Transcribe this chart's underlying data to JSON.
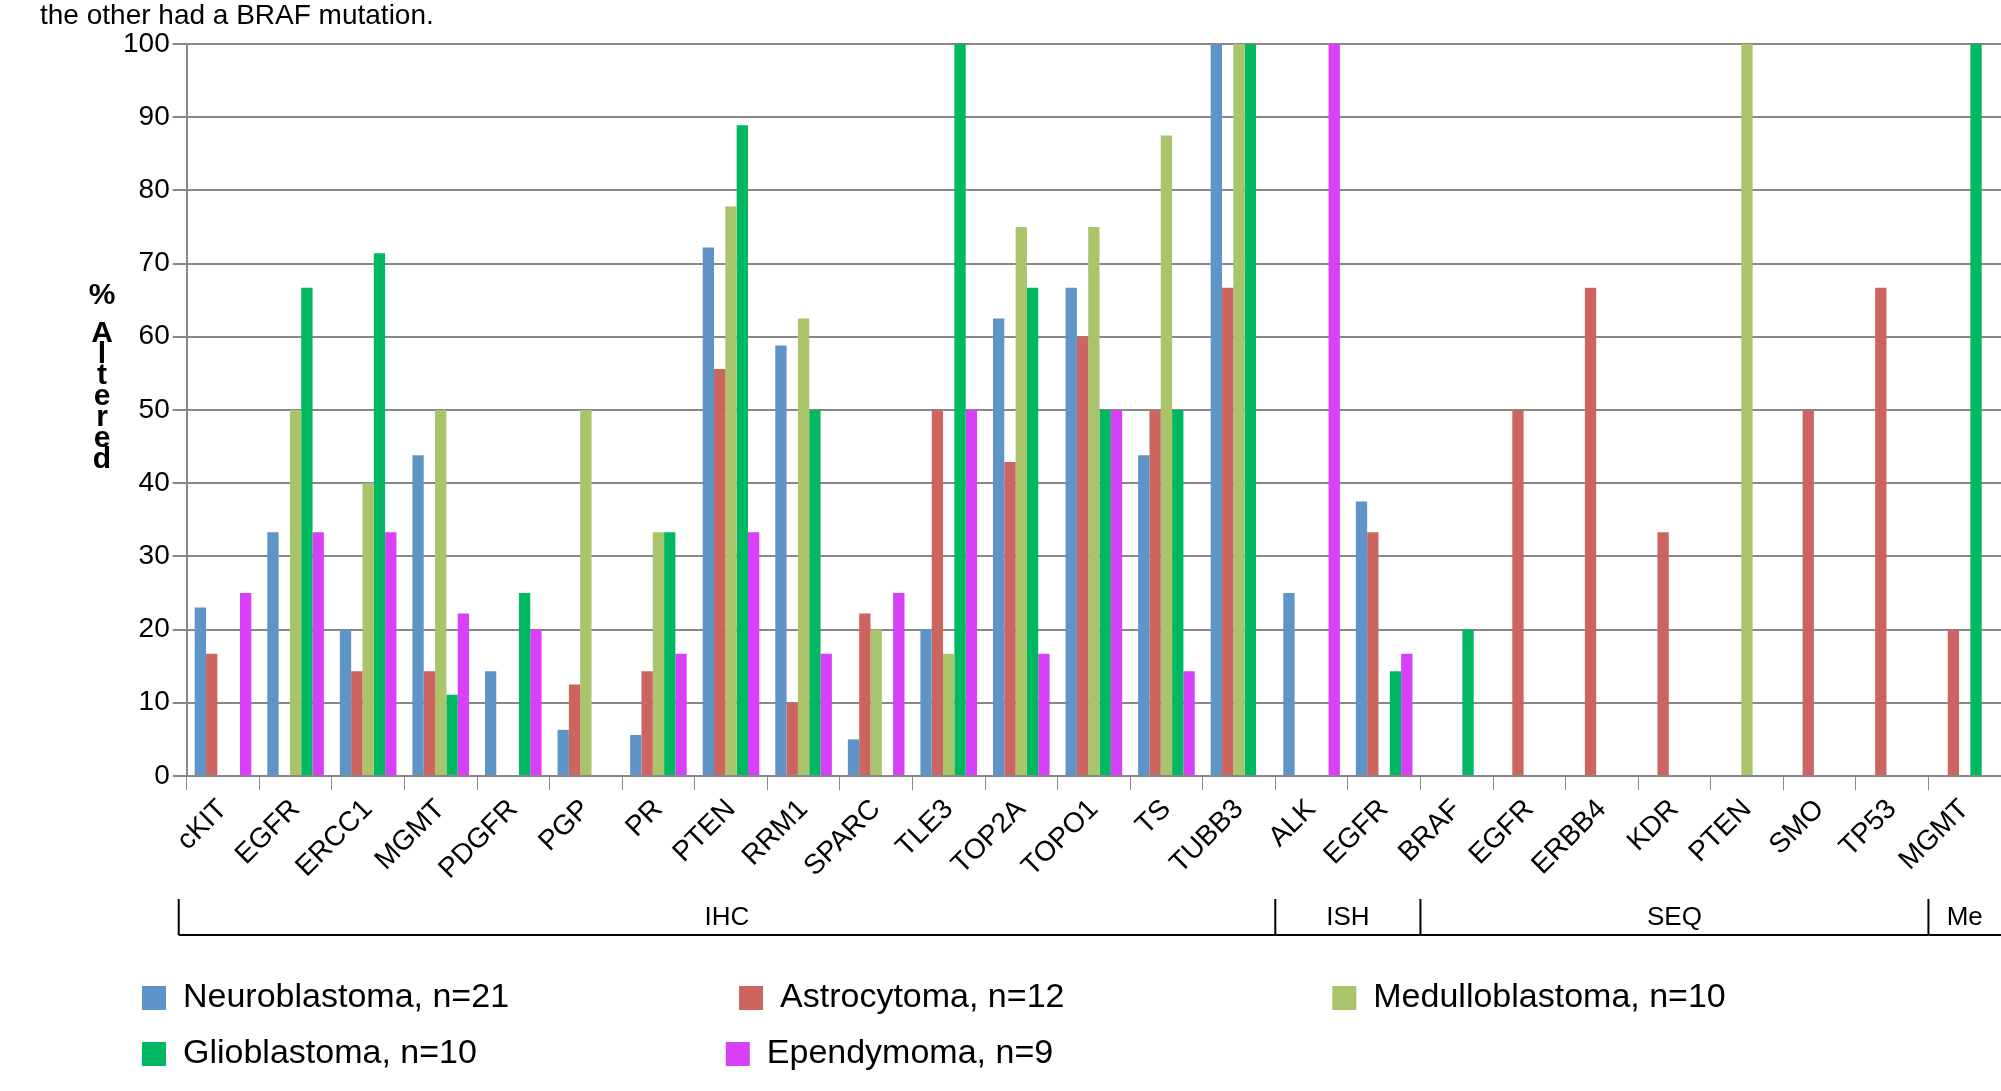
{
  "chart_data": {
    "type": "bar",
    "title": "the other had a BRAF mutation.",
    "ylabel": "% Altered",
    "categories": [
      "cKIT",
      "EGFR",
      "ERCC1",
      "MGMT",
      "PDGFR",
      "PGP",
      "PR",
      "PTEN",
      "RRM1",
      "SPARC",
      "TLE3",
      "TOP2A",
      "TOPO1",
      "TS",
      "TUBB3",
      "ALK",
      "EGFR",
      "BRAF",
      "EGFR",
      "ERBB4",
      "KDR",
      "PTEN",
      "SMO",
      "TP53",
      "MGMT"
    ],
    "series": [
      {
        "name": "Neuroblastoma, n=21",
        "color": "#5f94c8",
        "values": [
          23,
          33.3,
          20,
          43.8,
          14.3,
          6.3,
          5.6,
          72.2,
          58.8,
          5,
          20,
          62.5,
          66.7,
          43.8,
          100,
          25,
          37.5,
          0,
          0,
          0,
          0,
          0,
          0,
          0,
          0
        ]
      },
      {
        "name": "Astrocytoma, n=12",
        "color": "#cc6560",
        "values": [
          16.7,
          0,
          14.3,
          14.3,
          0,
          12.5,
          14.3,
          55.6,
          10,
          22.2,
          50,
          42.9,
          60,
          50,
          66.7,
          0,
          33.3,
          0,
          50,
          66.7,
          33.3,
          0,
          50,
          66.7,
          20
        ]
      },
      {
        "name": "Medulloblastoma, n=10",
        "color": "#a9c46a",
        "values": [
          0,
          50,
          40,
          50,
          0,
          50,
          33.3,
          77.8,
          62.5,
          20,
          16.7,
          75,
          75,
          87.5,
          100,
          0,
          0,
          0,
          0,
          0,
          0,
          100,
          0,
          0,
          0
        ]
      },
      {
        "name": "Glioblastoma, n=10",
        "color": "#00b862",
        "values": [
          0,
          66.7,
          71.4,
          11.1,
          25,
          0,
          33.3,
          88.9,
          50,
          0,
          100,
          66.7,
          50,
          50,
          100,
          0,
          14.3,
          20,
          0,
          0,
          0,
          0,
          0,
          0,
          100
        ]
      },
      {
        "name": "Ependymoma, n=9",
        "color": "#d840f8",
        "values": [
          25,
          33.3,
          33.3,
          22.2,
          20,
          0,
          16.7,
          33.3,
          16.7,
          25,
          50,
          16.7,
          50,
          14.3,
          0,
          100,
          16.7,
          0,
          0,
          0,
          0,
          0,
          0,
          0,
          0
        ]
      }
    ],
    "annotations": [
      "IHC",
      "ISH",
      "SEQ",
      "Me"
    ],
    "ylim": [
      0,
      100
    ],
    "yticks": [
      0,
      10,
      20,
      30,
      40,
      50,
      60,
      70,
      80,
      90,
      100
    ],
    "grid": "y",
    "legend": "bottom"
  }
}
